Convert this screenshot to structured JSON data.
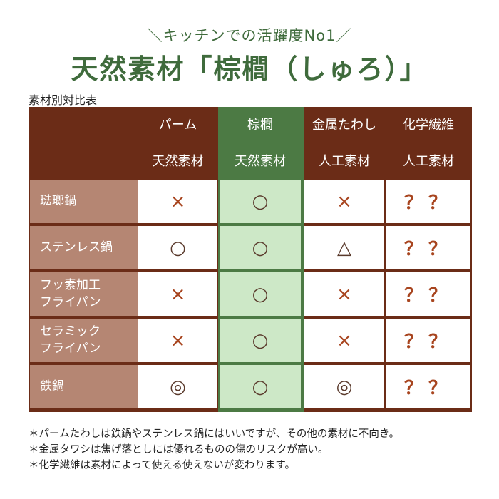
{
  "header": {
    "subtitle": "＼キッチンでの活躍度No1／",
    "title": "天然素材「棕櫚（しゅろ）」"
  },
  "table": {
    "caption": "素材別対比表",
    "columns": [
      {
        "name": "パーム",
        "type": "天然素材"
      },
      {
        "name": "棕櫚",
        "type": "天然素材"
      },
      {
        "name": "金属たわし",
        "type": "人工素材"
      },
      {
        "name": "化学繊維",
        "type": "人工素材"
      }
    ],
    "rows": [
      {
        "label_lines": [
          "琺瑯鍋"
        ],
        "marks": [
          "×",
          "○",
          "×",
          "？？"
        ]
      },
      {
        "label_lines": [
          "ステンレス鍋"
        ],
        "marks": [
          "○",
          "○",
          "△",
          "？？"
        ]
      },
      {
        "label_lines": [
          "フッ素加工",
          "フライパン"
        ],
        "marks": [
          "×",
          "○",
          "×",
          "？？"
        ]
      },
      {
        "label_lines": [
          "セラミック",
          "フライパン"
        ],
        "marks": [
          "×",
          "○",
          "×",
          "？？"
        ]
      },
      {
        "label_lines": [
          "鉄鍋"
        ],
        "marks": [
          "◎",
          "○",
          "◎",
          "？？"
        ]
      }
    ],
    "highlight_column_color": "#4c7a44",
    "highlight_cell_color": "#cde8c7",
    "header_color": "#6b2c17",
    "row_header_color": "#b58673"
  },
  "notes": [
    "＊パームたわしは鉄鍋やステンレス鍋にはいいですが、その他の素材に不向き。",
    "＊金属タワシは焦げ落としには優れるものの傷のリスクが高い。",
    "＊化学繊維は素材によって使える使えないが変わります。"
  ]
}
